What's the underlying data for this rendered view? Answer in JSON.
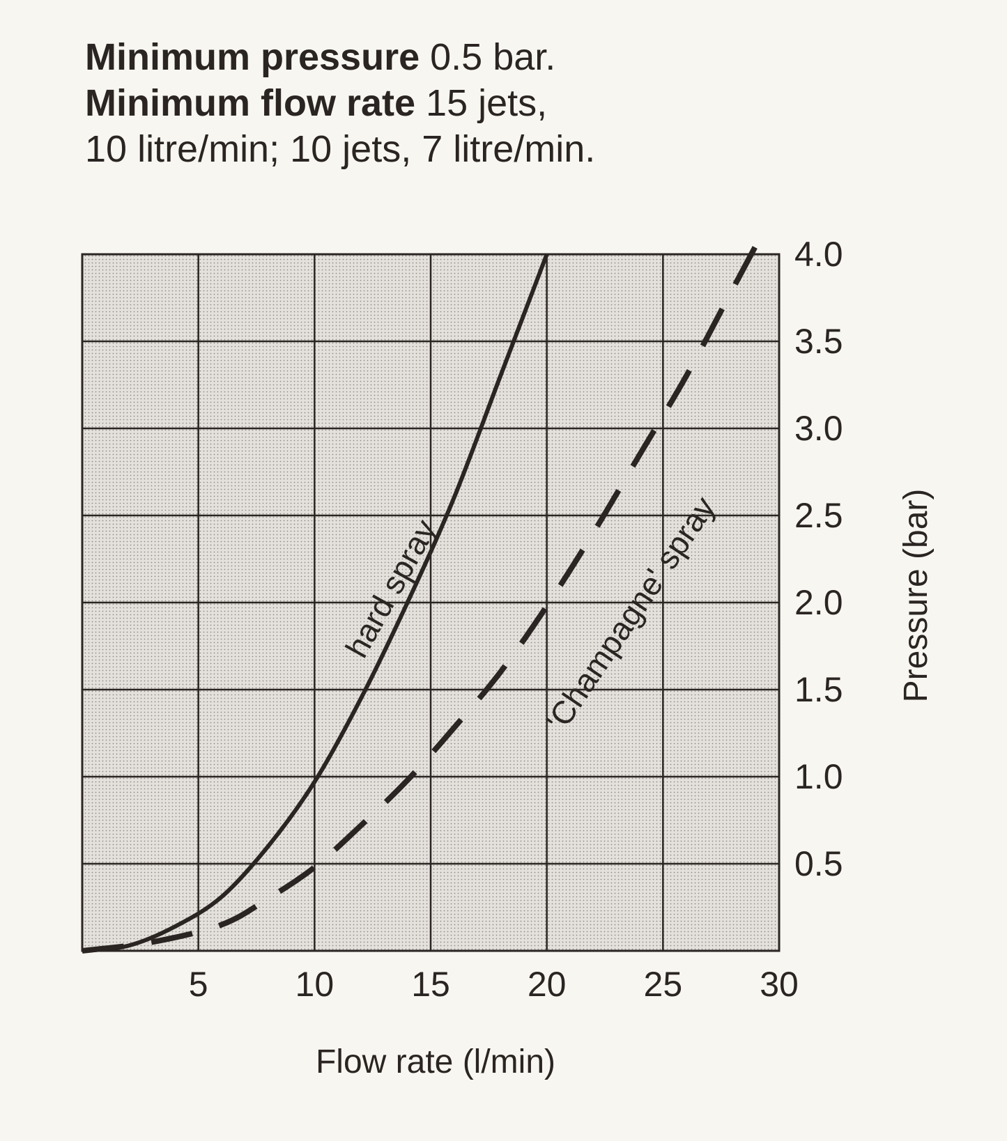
{
  "header": {
    "line1": {
      "bold": "Minimum pressure",
      "text": " 0.5 bar."
    },
    "line2": {
      "bold": "Minimum flow rate",
      "text": " 15 jets,"
    },
    "line3": {
      "text": "10 litre/min; 10 jets, 7 litre/min."
    }
  },
  "chart_data": {
    "type": "line",
    "xlabel": "Flow rate (l/min)",
    "ylabel": "Pressure (bar)",
    "xlim": [
      0,
      30
    ],
    "ylim": [
      0,
      4.0
    ],
    "x_ticks": [
      "5",
      "10",
      "15",
      "20",
      "25",
      "30"
    ],
    "y_ticks": [
      "0.5",
      "1.0",
      "1.5",
      "2.0",
      "2.5",
      "3.0",
      "3.5",
      "4.0"
    ],
    "grid": true,
    "y_axis_side": "right",
    "series": [
      {
        "name": "hard spray",
        "style": "solid",
        "x": [
          0,
          2,
          4,
          6,
          8,
          10,
          12,
          14,
          16,
          18,
          20
        ],
        "y": [
          0,
          0.03,
          0.14,
          0.31,
          0.6,
          0.97,
          1.45,
          2.0,
          2.6,
          3.3,
          4.0
        ]
      },
      {
        "name": "'Champagne' spray",
        "style": "dashed",
        "x": [
          0,
          3,
          6,
          8,
          10,
          12,
          14,
          16,
          18,
          20,
          22,
          24,
          26,
          28,
          29
        ],
        "y": [
          0,
          0.05,
          0.15,
          0.3,
          0.48,
          0.72,
          0.98,
          1.28,
          1.6,
          1.98,
          2.4,
          2.85,
          3.3,
          3.8,
          4.05
        ]
      }
    ],
    "annotations": [
      "hard spray",
      "'Champagne' spray"
    ]
  }
}
